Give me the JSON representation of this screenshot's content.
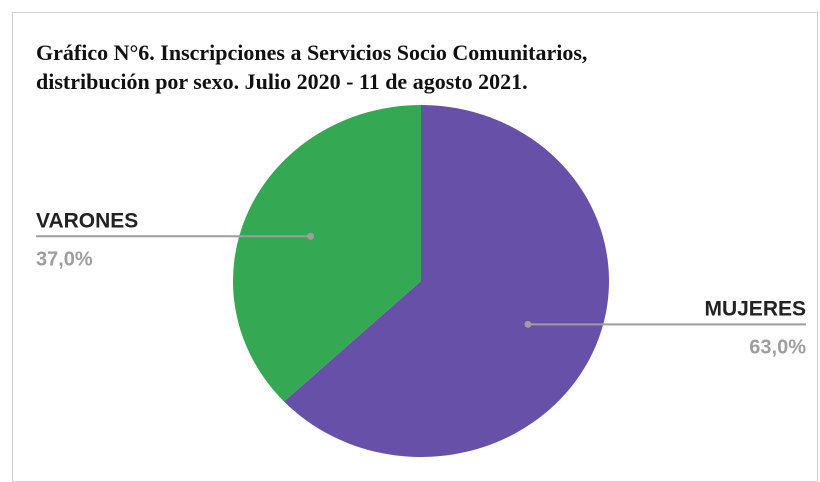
{
  "chart_data": {
    "type": "pie",
    "title": "Gráfico N°6. Inscripciones a Servicios Socio Comunitarios, distribución por sexo. Julio 2020 - 11 de agosto 2021.",
    "title_lines": [
      "Gráfico N°6. Inscripciones a Servicios Socio Comunitarios,",
      "distribución por sexo. Julio 2020 - 11 de agosto 2021."
    ],
    "slices": [
      {
        "label": "MUJERES",
        "value": 63.0,
        "value_label": "63,0%",
        "color": "#6750a8"
      },
      {
        "label": "VARONES",
        "value": 37.0,
        "value_label": "37,0%",
        "color": "#35a853"
      }
    ],
    "leader_line_color": "#9e9e9e",
    "value_label_color": "#9e9e9e"
  }
}
